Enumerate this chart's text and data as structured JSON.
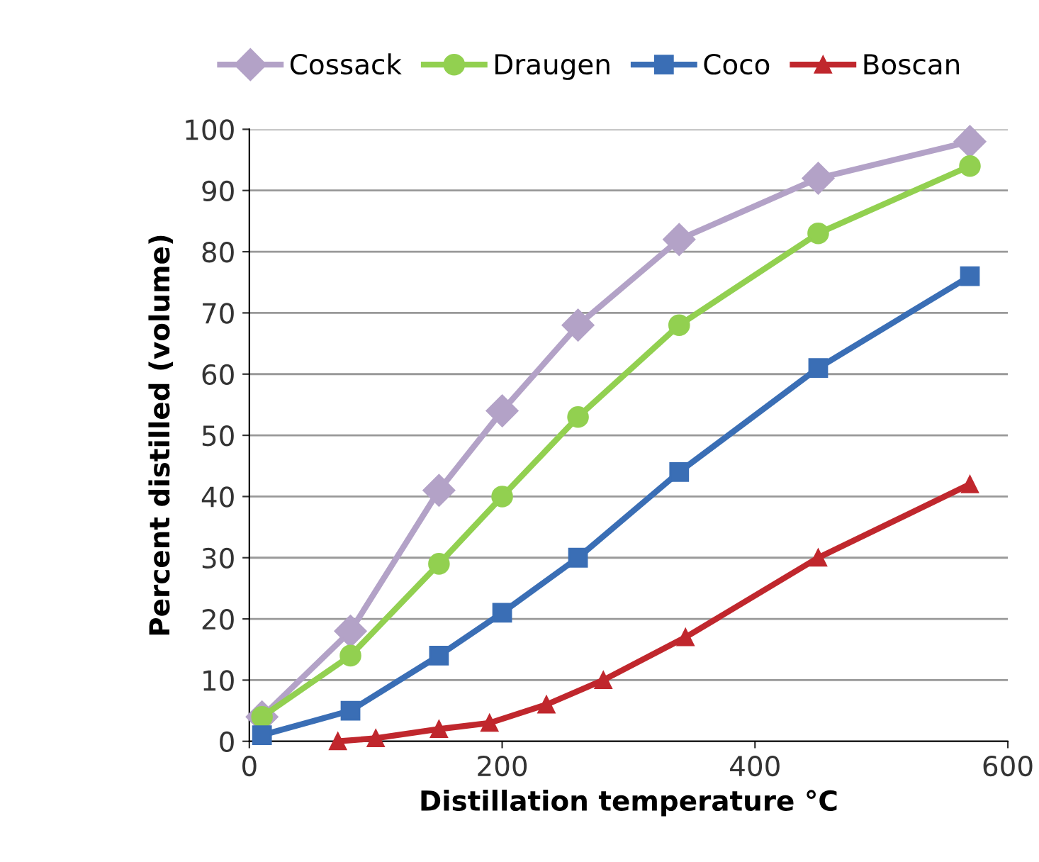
{
  "chart_data": {
    "type": "line",
    "xlabel": "Distillation temperature °C",
    "ylabel": "Percent distilled (volume)",
    "xlim": [
      0,
      600
    ],
    "xticks": [
      0,
      200,
      400,
      600
    ],
    "ylim": [
      0,
      100
    ],
    "yticks": [
      0,
      10,
      20,
      30,
      40,
      50,
      60,
      70,
      80,
      90,
      100
    ],
    "grid": "y",
    "legend": "top",
    "line_style": "solid",
    "series": [
      {
        "name": "Cossack",
        "color": "#b3a2c7",
        "marker": "diamond",
        "x": [
          10,
          80,
          150,
          200,
          260,
          340,
          450,
          570
        ],
        "values": [
          4,
          18,
          41,
          54,
          68,
          82,
          92,
          98
        ]
      },
      {
        "name": "Draugen",
        "color": "#92d050",
        "marker": "circle",
        "x": [
          10,
          80,
          150,
          200,
          260,
          340,
          450,
          570
        ],
        "values": [
          4,
          14,
          29,
          40,
          53,
          68,
          83,
          94
        ]
      },
      {
        "name": "Coco",
        "color": "#3a6eb5",
        "marker": "square",
        "x": [
          10,
          80,
          150,
          200,
          260,
          340,
          450,
          570
        ],
        "values": [
          1,
          5,
          14,
          21,
          30,
          44,
          61,
          76
        ]
      },
      {
        "name": "Boscan",
        "color": "#c0272d",
        "marker": "triangle",
        "x": [
          70,
          100,
          150,
          190,
          235,
          280,
          345,
          450,
          570
        ],
        "values": [
          0,
          0.5,
          2,
          3,
          6,
          10,
          17,
          30,
          42
        ]
      }
    ]
  }
}
